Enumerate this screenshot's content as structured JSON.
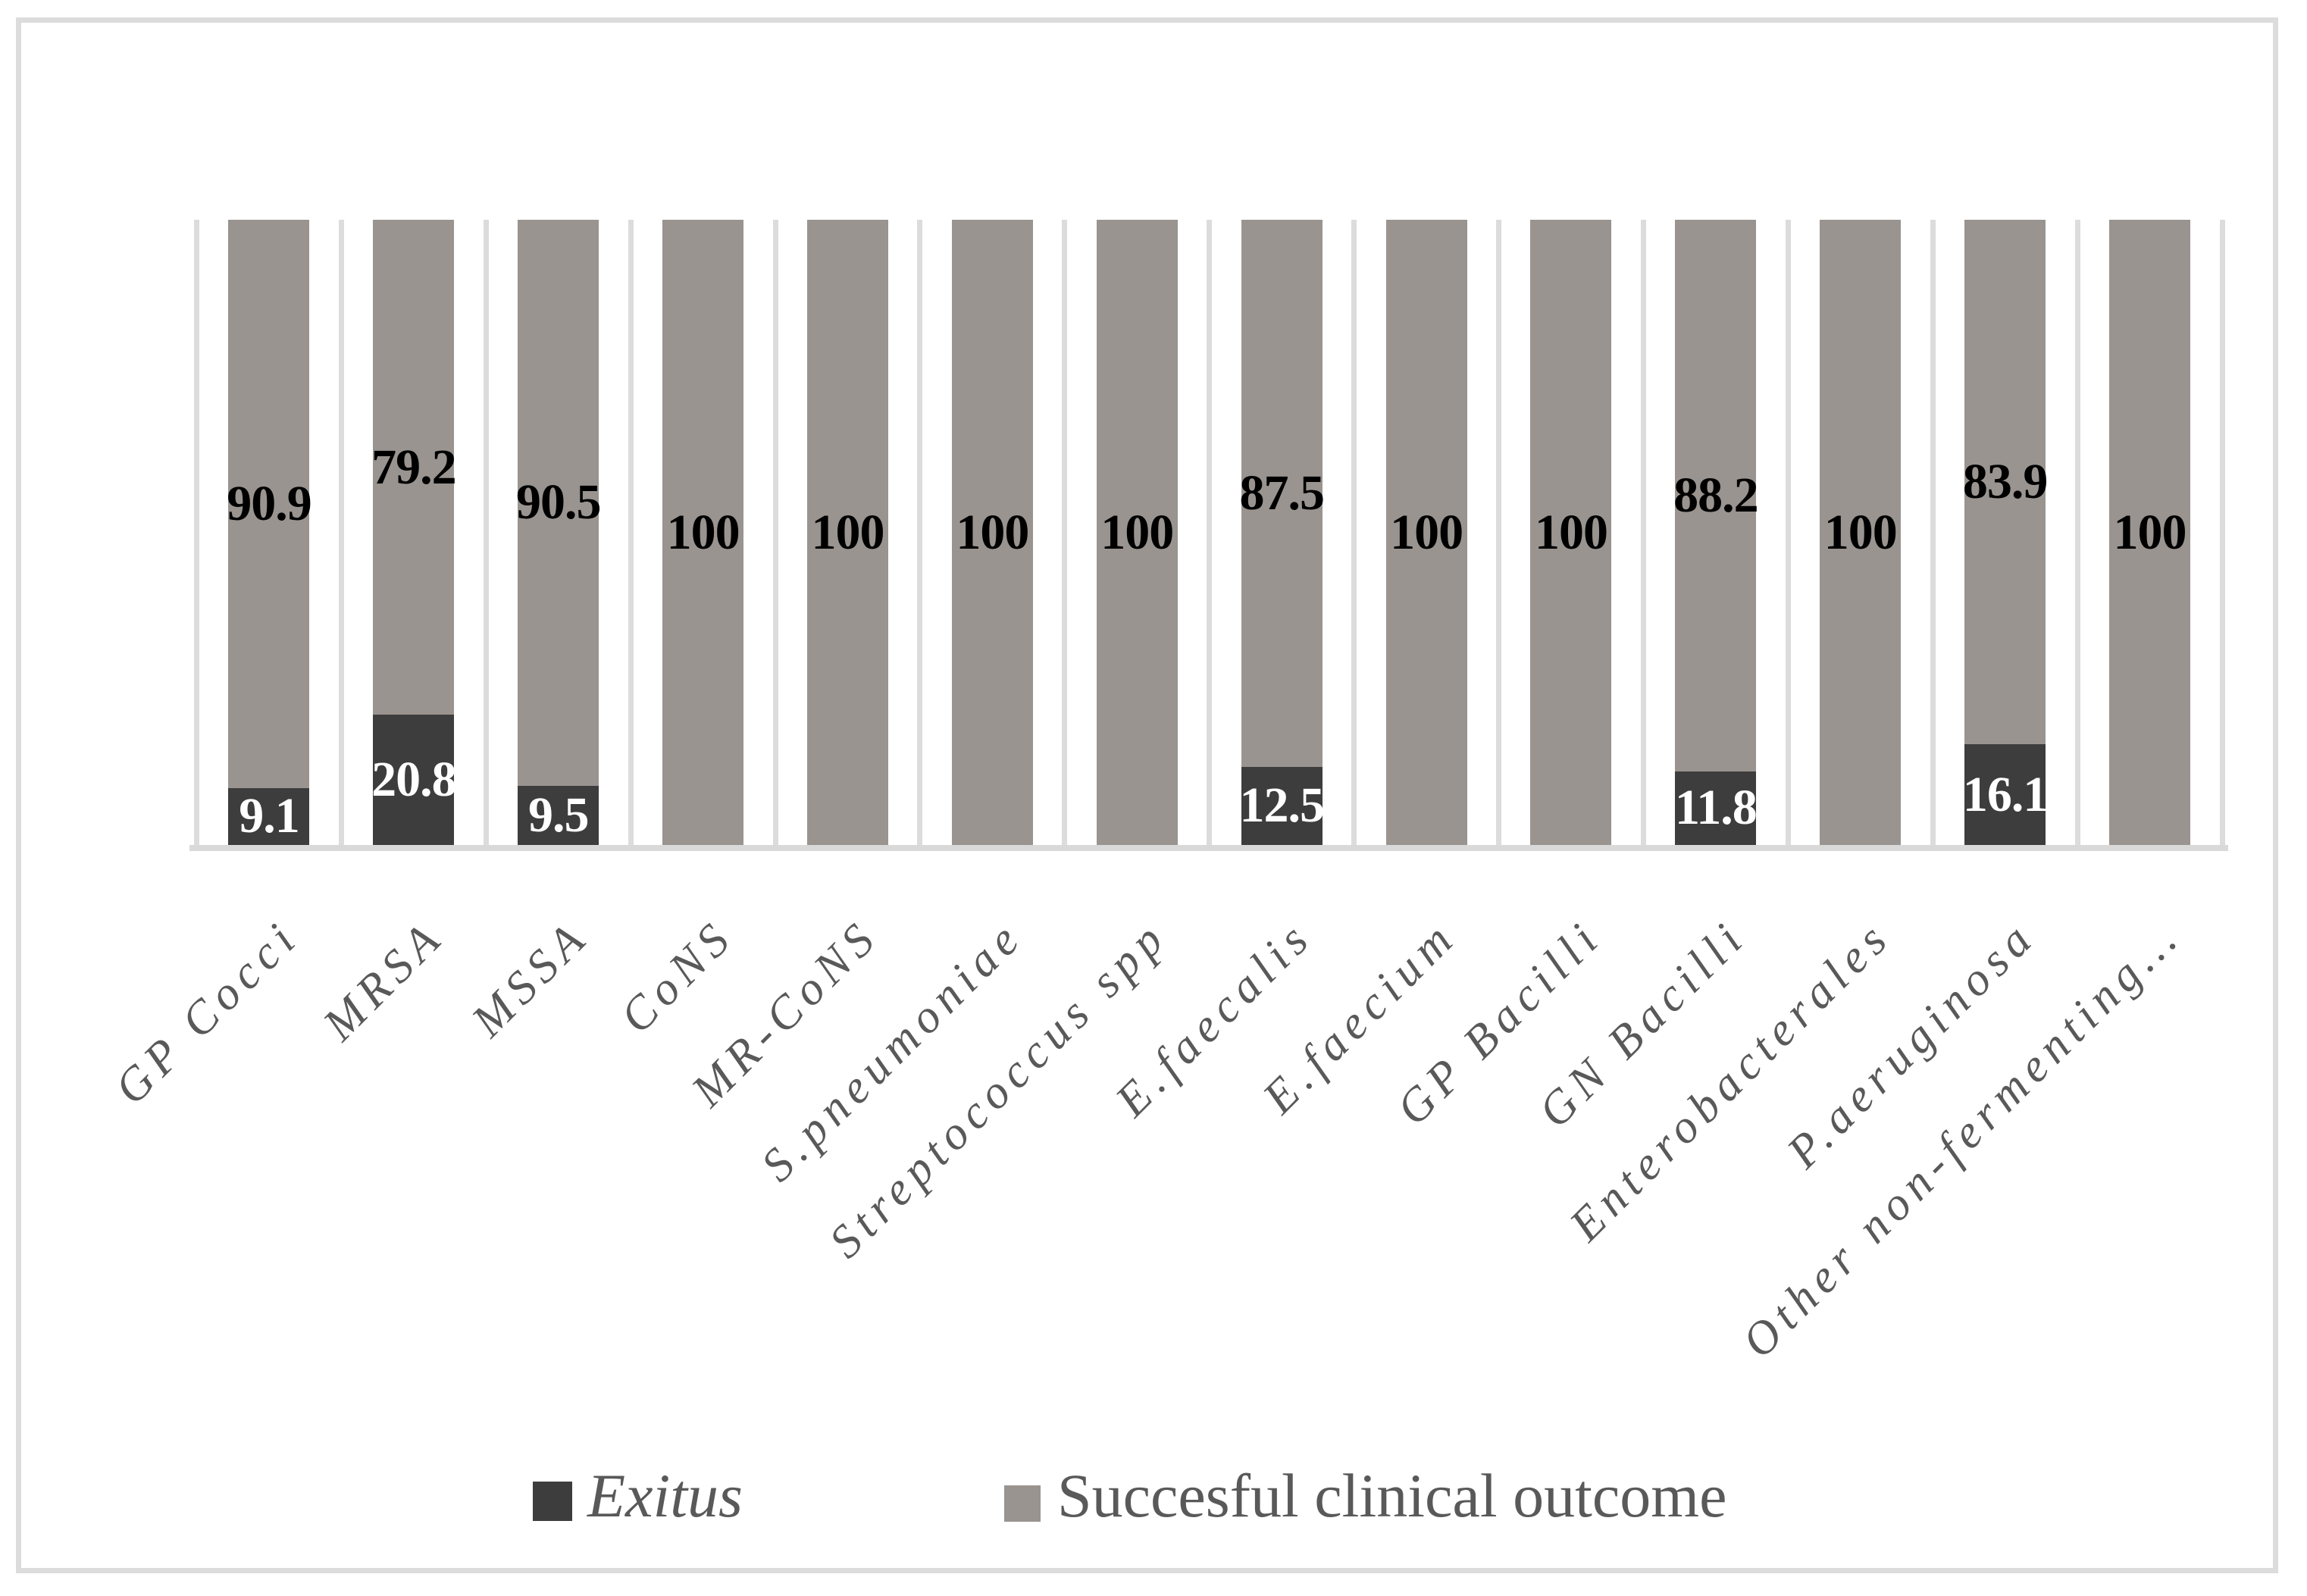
{
  "chart_data": {
    "type": "bar",
    "subtype": "100-percent-stacked-column",
    "title": "",
    "xlabel": "",
    "ylabel": "",
    "ylim": [
      0,
      100
    ],
    "grid": "vertical-category-gridlines",
    "legend_position": "bottom",
    "categories": [
      "GP Cocci",
      "MRSA",
      "MSSA",
      "CoNS",
      "MR-CoNS",
      "S.pneumoniae",
      "Streptococcus spp",
      "E.faecalis",
      "E.faecium",
      "GP Bacilli",
      "GN Bacilli",
      "Enterobacterales",
      "P.aeruginosa",
      "Other non-fermenting…"
    ],
    "series": [
      {
        "name": "Exitus",
        "color": "#3d3d3d",
        "label_color": "#ffffff",
        "values": [
          9.1,
          20.8,
          9.5,
          null,
          null,
          null,
          null,
          12.5,
          null,
          null,
          11.8,
          null,
          16.1,
          null
        ]
      },
      {
        "name": "Succesful clinical outcome",
        "color": "#999490",
        "label_color": "#000000",
        "values": [
          90.9,
          79.2,
          90.5,
          100,
          100,
          100,
          100,
          87.5,
          100,
          100,
          88.2,
          100,
          83.9,
          100
        ]
      }
    ]
  },
  "legend": {
    "items": [
      {
        "label": "Exitus",
        "swatch_color": "#3d3d3d",
        "italic": true
      },
      {
        "label": "Succesful clinical outcome",
        "swatch_color": "#999490",
        "italic": false
      }
    ],
    "text_color": "#595959"
  },
  "style": {
    "gridline_color": "#dcdcdc",
    "axis_line_color": "#d9d9d9",
    "category_label_color": "#595959",
    "figure_border_color": "#dcdcdc",
    "background": "#ffffff"
  }
}
